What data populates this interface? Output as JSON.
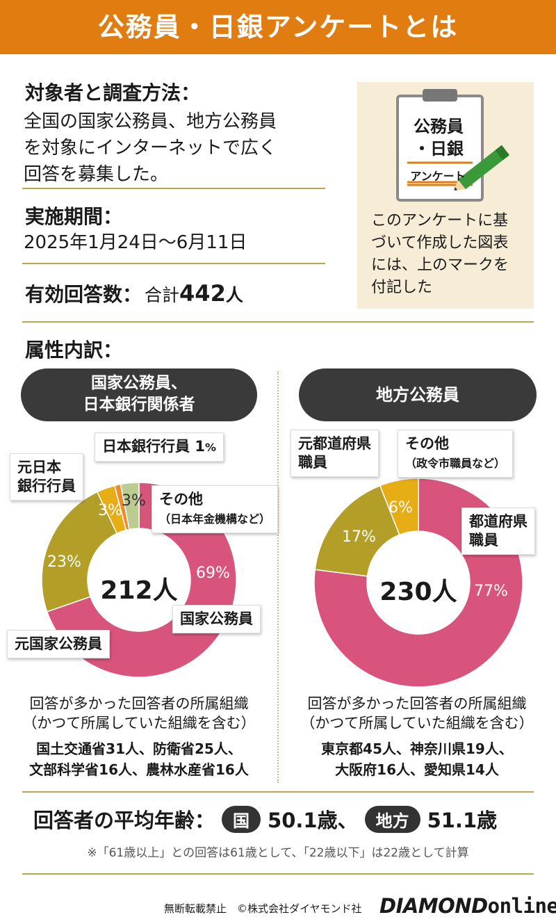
{
  "header": {
    "title": "公務員・日銀アンケートとは"
  },
  "survey": {
    "method_label": "対象者と調査方法：",
    "method_lines": [
      "全国の国家公務員、地方公務員",
      "を対象にインターネットで広く",
      "回答を募集した。"
    ],
    "period_label": "実施期間：",
    "period_value": "2025年1月24日〜6月11日",
    "count_label": "有効回答数：",
    "count_prefix": "合計",
    "count_value": "442",
    "count_unit": "人"
  },
  "mark_card": {
    "line1": "公務員",
    "line2": "・日銀",
    "line3": "アンケート",
    "note_lines": [
      "このアンケートに基",
      "づいて作成した図表",
      "には、上のマークを",
      "付記した"
    ]
  },
  "attr_label": "属性内訳：",
  "chart_data": [
    {
      "type": "pie",
      "donut": true,
      "title_lines": [
        "国家公務員、",
        "日本銀行関係者"
      ],
      "center_label": "212人",
      "slices": [
        {
          "name": "国家公務員",
          "value": 69,
          "label": "69%",
          "color": "#d9547c"
        },
        {
          "name": "元国家公務員",
          "value": 23,
          "label": "23%",
          "color": "#b39f28"
        },
        {
          "name": "元日本銀行行員",
          "value": 3,
          "label": "3%",
          "color": "#e7ad15"
        },
        {
          "name": "日本銀行行員",
          "value": 1,
          "label": "1%",
          "color": "#ec8a2c"
        },
        {
          "name": "その他（日本年金機構など）",
          "value": 3,
          "label": "3%",
          "color": "#bccb8f"
        }
      ],
      "org_title_lines": [
        "回答が多かった回答者の所属組織",
        "（かつて所属していた組織を含む）"
      ],
      "org_lines": [
        "国土交通省31人、防衛省25人、",
        "文部科学省16人、農林水産省16人"
      ]
    },
    {
      "type": "pie",
      "donut": true,
      "title_lines": [
        "地方公務員"
      ],
      "center_label": "230人",
      "slices": [
        {
          "name": "都道府県職員",
          "value": 77,
          "label": "77%",
          "color": "#d9547c"
        },
        {
          "name": "元都道府県職員",
          "value": 17,
          "label": "17%",
          "color": "#b39f28"
        },
        {
          "name": "その他（政令市職員など）",
          "value": 6,
          "label": "6%",
          "color": "#e7ad15"
        }
      ],
      "org_title_lines": [
        "回答が多かった回答者の所属組織",
        "（かつて所属していた組織を含む）"
      ],
      "org_lines": [
        "東京都45人、神奈川県19人、",
        "大阪府16人、愛知県14人"
      ]
    }
  ],
  "callouts": {
    "c1_boj": "日本銀行行員",
    "c1_boj_pct": "1",
    "c1_boj_unit": "%",
    "c1_former_boj_1": "元日本",
    "c1_former_boj_2": "銀行行員",
    "c1_other": "その他",
    "c1_other_sub": "（日本年金機構など）",
    "c1_national": "国家公務員",
    "c1_former_national": "元国家公務員",
    "c2_former_pref_1": "元都道府県",
    "c2_former_pref_2": "職員",
    "c2_other": "その他",
    "c2_other_sub": "（政令市職員など）",
    "c2_pref_1": "都道府県",
    "c2_pref_2": "職員"
  },
  "avg_age": {
    "label": "回答者の平均年齢：",
    "national_badge": "国",
    "national_value": "50.1歳、",
    "local_badge": "地方",
    "local_value": "51.1歳"
  },
  "footnote": "※「61歳以上」との回答は61歳として、「22歳以下」は22歳として計算",
  "footer": {
    "copyright": "無断転載禁止　©株式会社ダイヤモンド社",
    "logo_main": "DIAMOND",
    "logo_sub": "online"
  },
  "colors": {
    "header": "#e07c10",
    "rule": "#b9a64a",
    "pink": "#d9547c",
    "olive": "#b39f28",
    "gold": "#e7ad15"
  }
}
